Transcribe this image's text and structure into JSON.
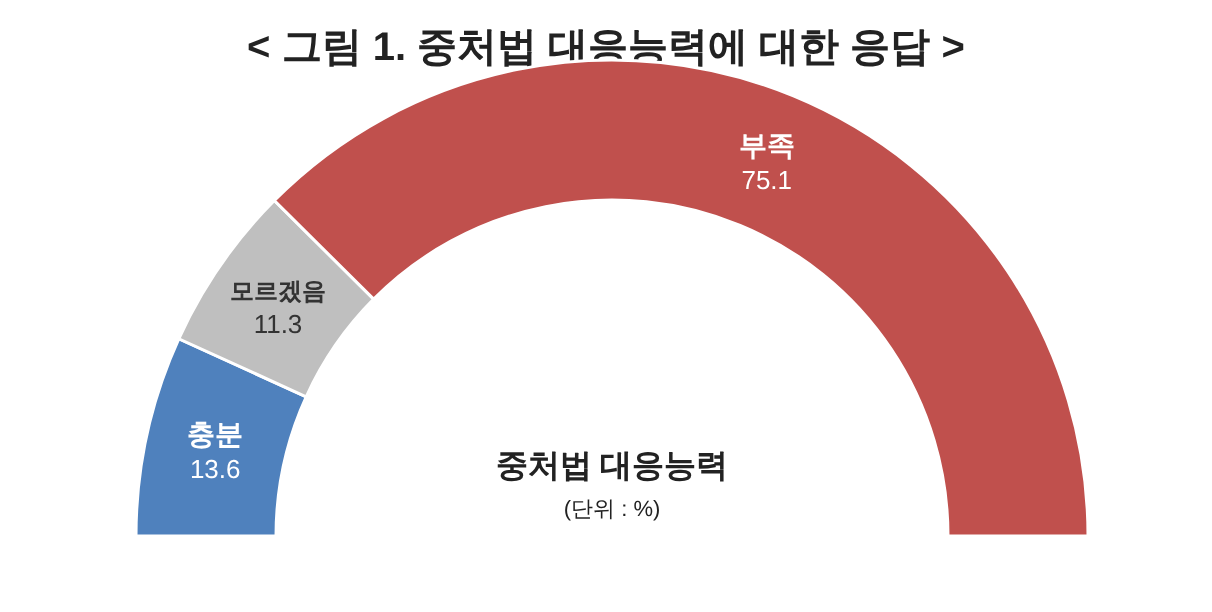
{
  "chart_data": {
    "type": "donut",
    "title": "< 그림 1. 중처법 대응능력에 대한 응답 >",
    "categories": [
      "충분",
      "모르겠음",
      "부족"
    ],
    "values": [
      13.6,
      11.3,
      75.1
    ],
    "colors": [
      "#4f81bd",
      "#bfbfbf",
      "#c0504d"
    ],
    "data_labels": true,
    "annotations": [
      "중처법 대응능력",
      "(단위 : %)"
    ]
  }
}
